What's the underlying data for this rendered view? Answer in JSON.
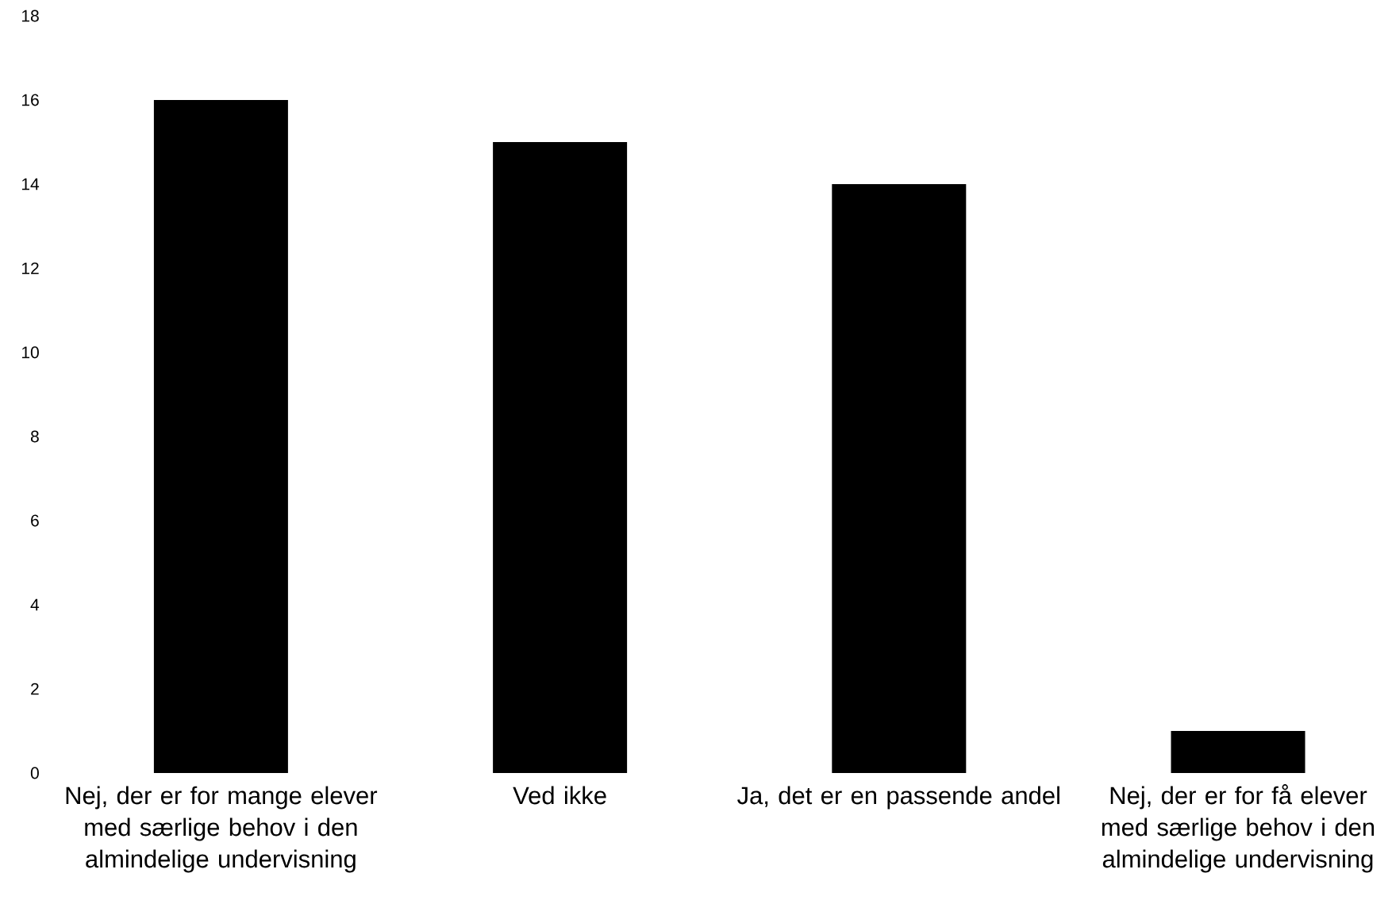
{
  "chart_data": {
    "type": "bar",
    "categories": [
      "Nej, der er for mange elever med særlige behov i den almindelige undervisning",
      "Ved ikke",
      "Ja, det er en passende andel",
      "Nej, der er for få elever med særlige behov i den almindelige undervisning"
    ],
    "values": [
      16,
      15,
      14,
      1
    ],
    "color": "#000000",
    "ylim": [
      0,
      18
    ],
    "yticks": [
      0,
      2,
      4,
      6,
      8,
      10,
      12,
      14,
      16,
      18
    ]
  }
}
